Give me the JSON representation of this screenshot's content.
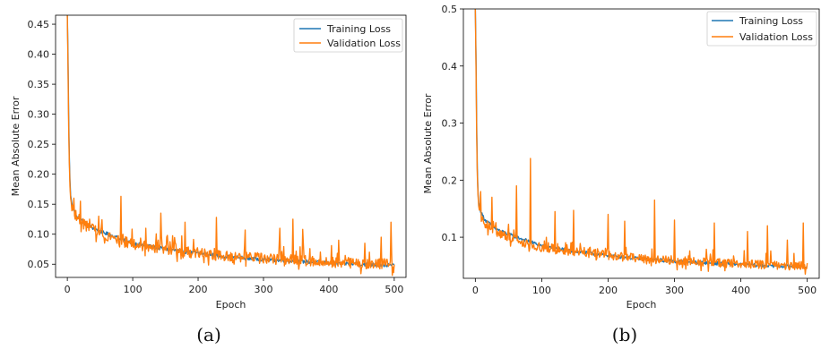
{
  "chart_data": [
    {
      "type": "line",
      "panel_label": "(a)",
      "xlabel": "Epoch",
      "ylabel": "Mean Absolute Error",
      "xlim": [
        -18,
        518
      ],
      "ylim": [
        0.028,
        0.465
      ],
      "xticks": [
        "0",
        "100",
        "200",
        "300",
        "400",
        "500"
      ],
      "yticks": [
        "0.05",
        "0.10",
        "0.15",
        "0.20",
        "0.25",
        "0.30",
        "0.35",
        "0.40",
        "0.45"
      ],
      "grid": false,
      "legend_position": "top-right",
      "legend": [
        "Training Loss",
        "Validation Loss"
      ],
      "series": [
        {
          "name": "Training Loss",
          "color": "#1f77b4",
          "x": [
            0,
            1,
            2,
            3,
            4,
            5,
            7,
            10,
            15,
            20,
            30,
            40,
            50,
            75,
            100,
            150,
            200,
            250,
            300,
            350,
            400,
            450,
            500
          ],
          "y": [
            0.465,
            0.4,
            0.3,
            0.23,
            0.19,
            0.165,
            0.15,
            0.14,
            0.13,
            0.125,
            0.115,
            0.11,
            0.105,
            0.095,
            0.085,
            0.075,
            0.068,
            0.062,
            0.058,
            0.055,
            0.052,
            0.05,
            0.048
          ]
        },
        {
          "name": "Validation Loss",
          "color": "#ff7f0e",
          "x": [
            0,
            1,
            2,
            3,
            4,
            5,
            7,
            10,
            15,
            20,
            30,
            40,
            50,
            75,
            100,
            150,
            200,
            250,
            300,
            350,
            400,
            450,
            500
          ],
          "y": [
            0.465,
            0.38,
            0.28,
            0.22,
            0.18,
            0.16,
            0.145,
            0.135,
            0.125,
            0.12,
            0.11,
            0.105,
            0.1,
            0.09,
            0.08,
            0.072,
            0.066,
            0.06,
            0.057,
            0.054,
            0.051,
            0.049,
            0.047
          ],
          "noise_amp": 0.018,
          "spikes": [
            [
              10,
              0.16
            ],
            [
              20,
              0.155
            ],
            [
              48,
              0.13
            ],
            [
              82,
              0.163
            ],
            [
              120,
              0.11
            ],
            [
              143,
              0.135
            ],
            [
              180,
              0.12
            ],
            [
              228,
              0.128
            ],
            [
              272,
              0.107
            ],
            [
              325,
              0.11
            ],
            [
              345,
              0.125
            ],
            [
              360,
              0.108
            ],
            [
              415,
              0.09
            ],
            [
              455,
              0.085
            ],
            [
              480,
              0.095
            ],
            [
              495,
              0.12
            ]
          ]
        }
      ]
    },
    {
      "type": "line",
      "panel_label": "(b)",
      "xlabel": "Epoch",
      "ylabel": "Mean Absolute Error",
      "xlim": [
        -18,
        518
      ],
      "ylim": [
        0.028,
        0.5
      ],
      "xticks": [
        "0",
        "100",
        "200",
        "300",
        "400",
        "500"
      ],
      "yticks": [
        "0.1",
        "0.2",
        "0.3",
        "0.4",
        "0.5"
      ],
      "grid": false,
      "legend_position": "top-right",
      "legend": [
        "Training Loss",
        "Validation Loss"
      ],
      "series": [
        {
          "name": "Training Loss",
          "color": "#1f77b4",
          "x": [
            0,
            1,
            2,
            3,
            4,
            5,
            7,
            10,
            15,
            20,
            30,
            40,
            50,
            75,
            100,
            150,
            200,
            250,
            300,
            350,
            400,
            450,
            500
          ],
          "y": [
            0.5,
            0.42,
            0.3,
            0.22,
            0.18,
            0.16,
            0.15,
            0.14,
            0.13,
            0.125,
            0.115,
            0.11,
            0.105,
            0.095,
            0.085,
            0.075,
            0.068,
            0.062,
            0.058,
            0.055,
            0.052,
            0.05,
            0.048
          ]
        },
        {
          "name": "Validation Loss",
          "color": "#ff7f0e",
          "x": [
            0,
            1,
            2,
            3,
            4,
            5,
            7,
            10,
            15,
            20,
            30,
            40,
            50,
            75,
            100,
            150,
            200,
            250,
            300,
            350,
            400,
            450,
            500
          ],
          "y": [
            0.5,
            0.4,
            0.28,
            0.21,
            0.175,
            0.155,
            0.14,
            0.13,
            0.122,
            0.117,
            0.108,
            0.103,
            0.098,
            0.088,
            0.08,
            0.072,
            0.066,
            0.06,
            0.057,
            0.054,
            0.051,
            0.049,
            0.047
          ],
          "noise_amp": 0.016,
          "spikes": [
            [
              8,
              0.18
            ],
            [
              25,
              0.17
            ],
            [
              62,
              0.19
            ],
            [
              83,
              0.238
            ],
            [
              120,
              0.145
            ],
            [
              148,
              0.147
            ],
            [
              200,
              0.14
            ],
            [
              225,
              0.128
            ],
            [
              270,
              0.165
            ],
            [
              300,
              0.13
            ],
            [
              360,
              0.125
            ],
            [
              410,
              0.11
            ],
            [
              440,
              0.12
            ],
            [
              470,
              0.095
            ],
            [
              494,
              0.125
            ]
          ]
        }
      ]
    }
  ]
}
